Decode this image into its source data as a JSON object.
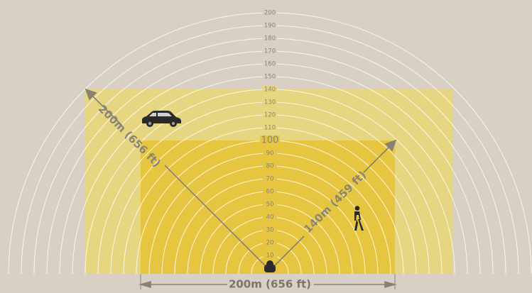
{
  "colors": {
    "background": "#d8d0c4",
    "outer_zone": "#e8d67a",
    "inner_zone": "#e6c640",
    "arc": "#ffffff",
    "arrow": "#8a8270",
    "label": "#8c8474",
    "dim_label": "#7d7566",
    "silhouette": "#2a2a2a"
  },
  "icons": {
    "device": "camera-icon",
    "vehicle": "car-icon",
    "person": "person-icon"
  },
  "range_rings": [
    "10",
    "20",
    "30",
    "40",
    "50",
    "60",
    "70",
    "80",
    "90",
    "100",
    "110",
    "120",
    "130",
    "140",
    "150",
    "160",
    "170",
    "180",
    "190",
    "200"
  ],
  "labels": {
    "diagonal_left": "200m (656 ft)",
    "diagonal_right": "140m (459 ft)",
    "bottom_width": "200m (656 ft)"
  }
}
